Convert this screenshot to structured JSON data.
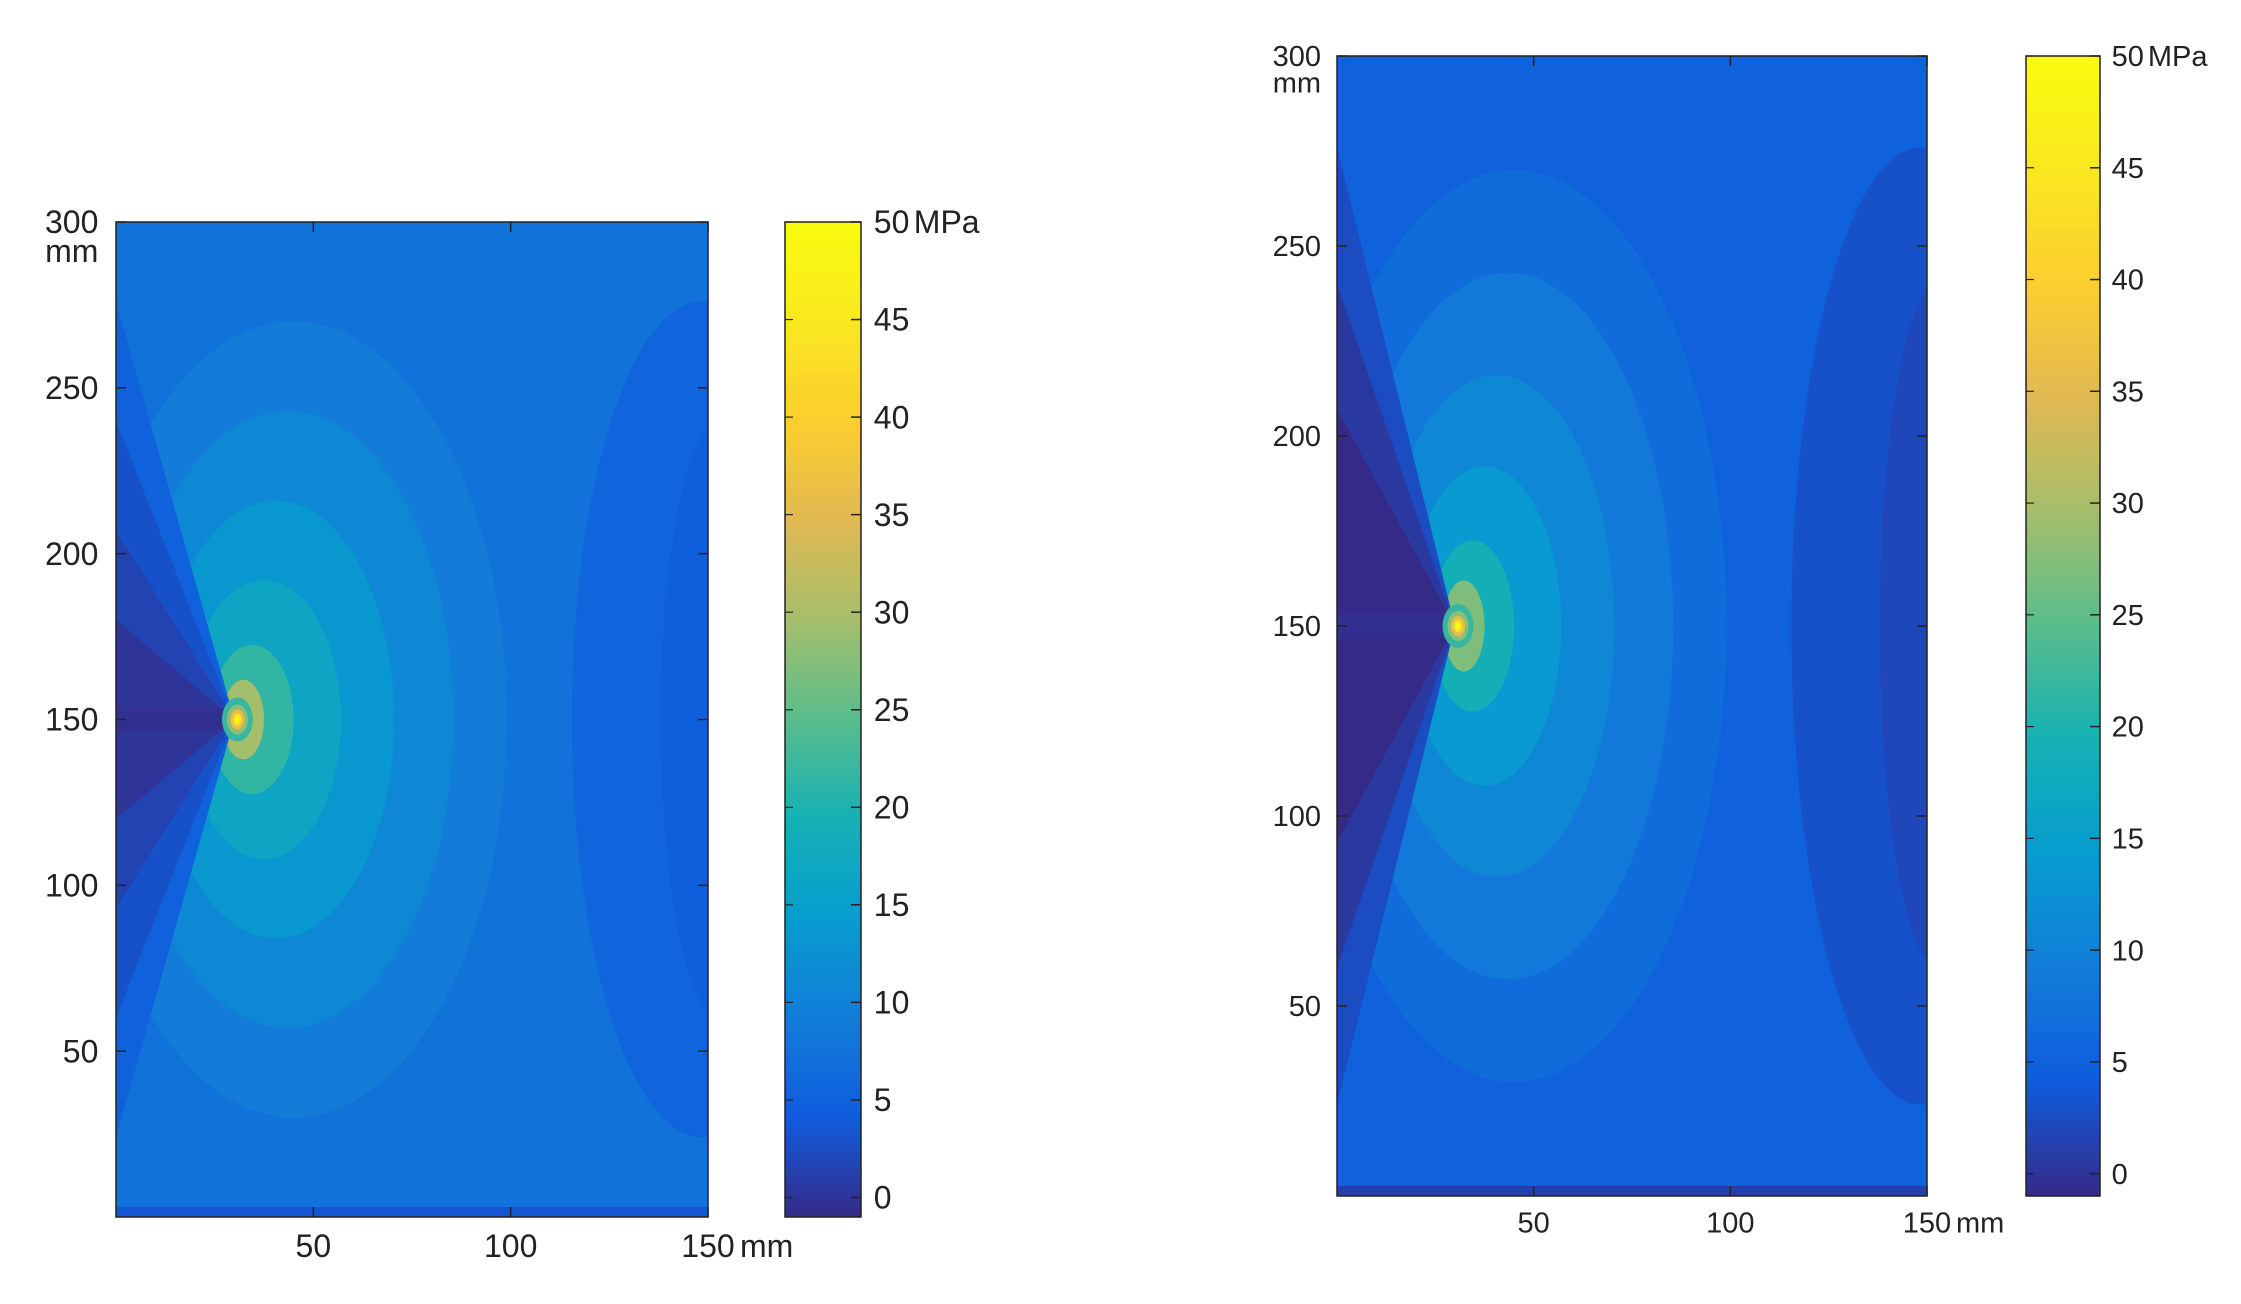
{
  "chart_data": [
    {
      "type": "heatmap",
      "title": "",
      "x_unit": "mm",
      "y_unit": "mm",
      "xlim": [
        0,
        150
      ],
      "ylim": [
        0,
        300
      ],
      "x_ticks": [
        50,
        100,
        150
      ],
      "y_ticks": [
        50,
        100,
        150,
        200,
        250,
        300
      ],
      "colorbar": {
        "unit": "MPa",
        "range": [
          -1,
          50
        ],
        "ticks": [
          0,
          5,
          10,
          15,
          20,
          25,
          30,
          35,
          40,
          45,
          50
        ],
        "colormap": "parula"
      },
      "crack": {
        "y": 150,
        "x_start": 0,
        "x_tip": 30
      },
      "background_stress": 7.5,
      "peak_stress_at_tip": 50,
      "grid": false
    },
    {
      "type": "heatmap",
      "title": "",
      "x_unit": "mm",
      "y_unit": "mm",
      "xlim": [
        0,
        150
      ],
      "ylim": [
        0,
        300
      ],
      "x_ticks": [
        50,
        100,
        150
      ],
      "y_ticks": [
        50,
        100,
        150,
        200,
        250,
        300
      ],
      "colorbar": {
        "unit": "MPa",
        "range": [
          -1,
          50
        ],
        "ticks": [
          0,
          5,
          10,
          15,
          20,
          25,
          30,
          35,
          40,
          45,
          50
        ],
        "colormap": "parula"
      },
      "crack": {
        "y": 150,
        "x_start": 0,
        "x_tip": 30
      },
      "background_stress": 5,
      "peak_stress_at_tip": 50,
      "grid": false
    }
  ]
}
